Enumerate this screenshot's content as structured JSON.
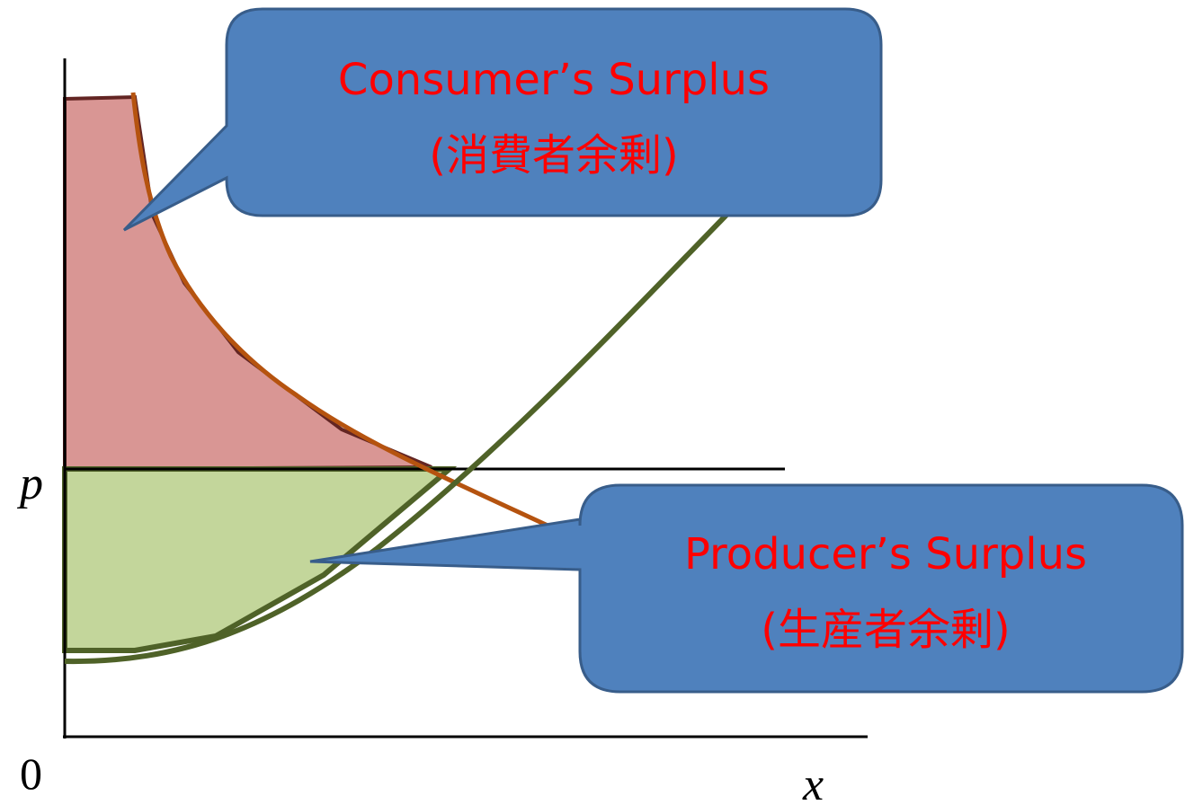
{
  "axes": {
    "y_label": "p",
    "origin": "0",
    "x_label": "x"
  },
  "callouts": [
    {
      "title": "Consumer’s Surplus",
      "subtitle": "(消費者余剰)"
    },
    {
      "title": "Producer’s Surplus",
      "subtitle": "(生産者余剰)"
    }
  ]
}
